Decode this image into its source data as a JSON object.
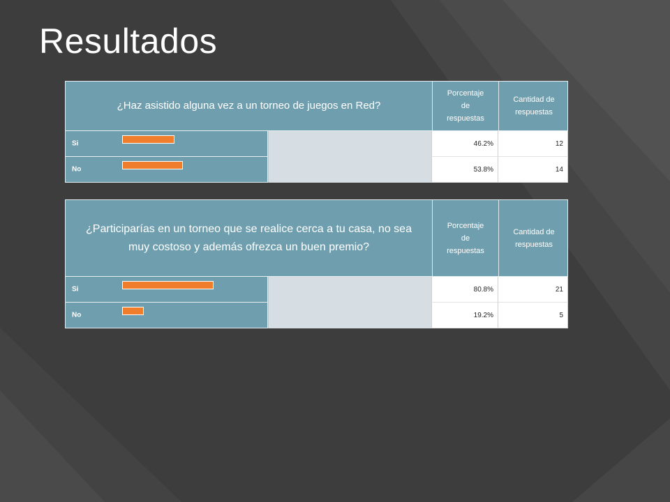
{
  "slide": {
    "title": "Resultados"
  },
  "colors": {
    "background": "#3d3d3d",
    "header": "#6f9fae",
    "bar": "#ef7d2c",
    "fill": "#d6dee3"
  },
  "chart_data": [
    {
      "type": "bar",
      "title": "¿Haz asistido alguna vez a un torneo de juegos en Red?",
      "columns": [
        "Porcentaje de respuestas",
        "Cantidad de respuestas"
      ],
      "categories": [
        "Si",
        "No"
      ],
      "percent_labels": [
        "46.2%",
        "53.8%"
      ],
      "values": [
        46.2,
        53.8
      ],
      "counts": [
        "12",
        "14"
      ],
      "xlim": [
        0,
        100
      ]
    },
    {
      "type": "bar",
      "title": "¿Participarías en un torneo que se realice cerca a tu casa, no sea muy costoso y además ofrezca un buen premio?",
      "columns": [
        "Porcentaje de respuestas",
        "Cantidad de respuestas"
      ],
      "categories": [
        "Si",
        "No"
      ],
      "percent_labels": [
        "80.8%",
        "19.2%"
      ],
      "values": [
        80.8,
        19.2
      ],
      "counts": [
        "21",
        "5"
      ],
      "xlim": [
        0,
        100
      ]
    }
  ]
}
